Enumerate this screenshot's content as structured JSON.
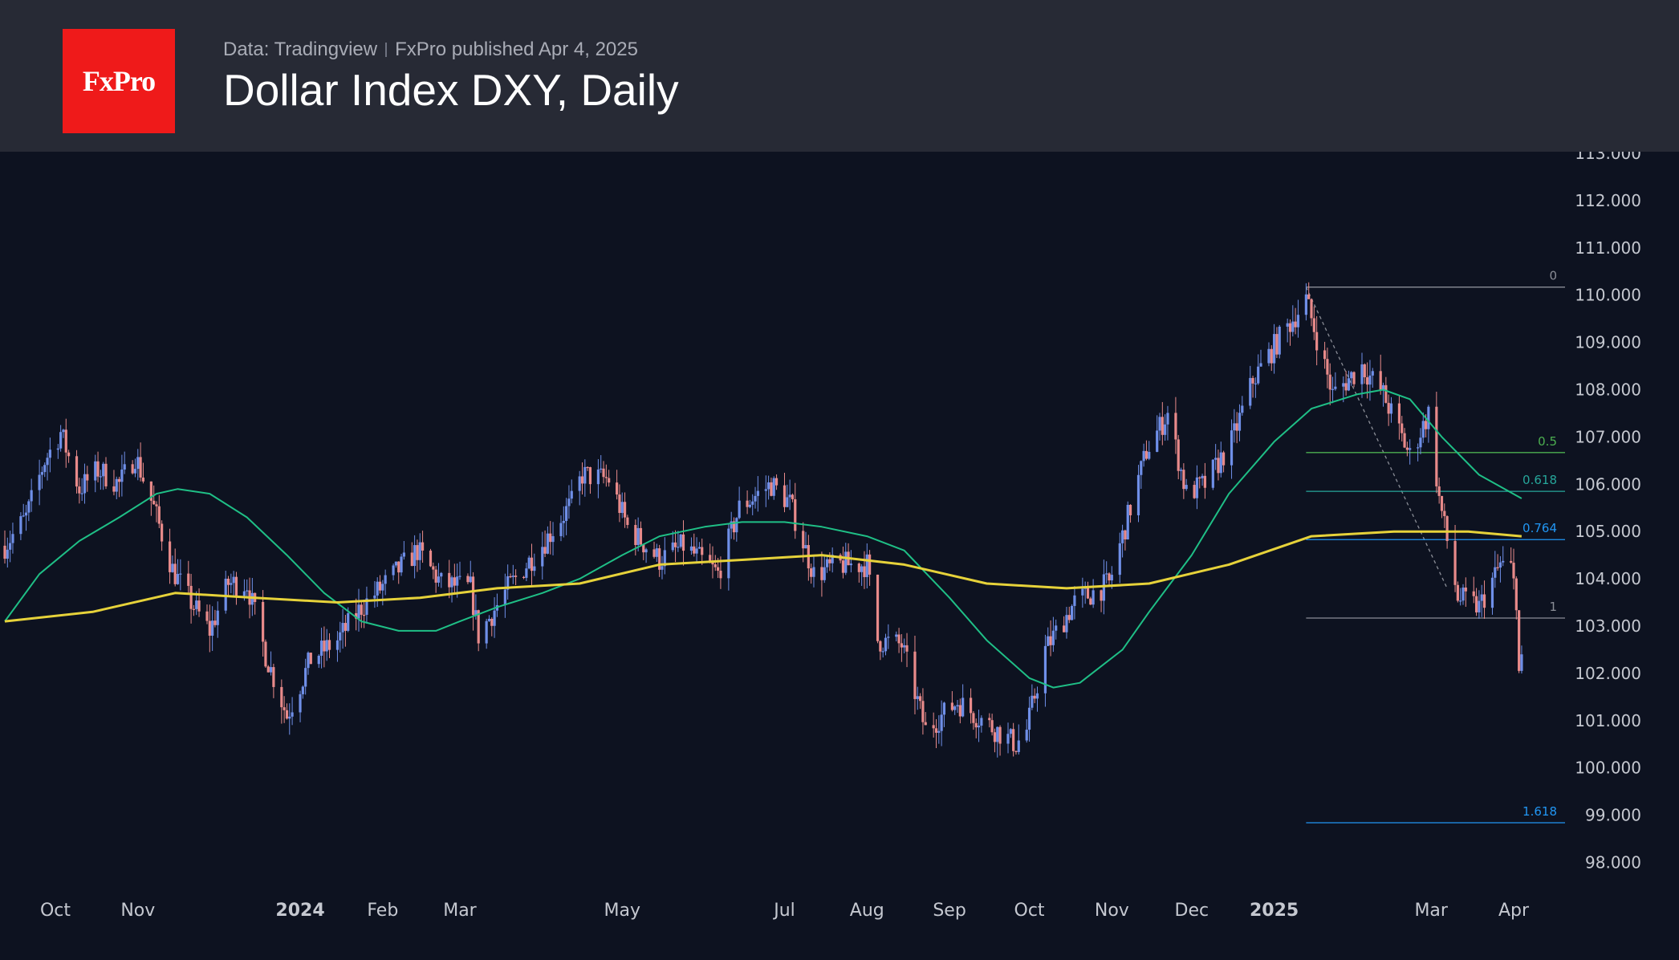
{
  "header": {
    "logo_text": "FxPro",
    "source": "Data: Tradingview",
    "published": "FxPro published Apr 4, 2025",
    "title": "Dollar Index DXY, Daily"
  },
  "colors": {
    "background": "#0d1220",
    "header_bg": "#272a35",
    "logo_bg": "#ef1a1a",
    "up_candle": "#6f8fe8",
    "down_candle": "#e88a8a",
    "ma_fast": "#1fbf86",
    "ma_slow": "#e6d23a",
    "fib_gray": "#8a8d96",
    "fib_green": "#4caf50",
    "fib_teal": "#26a69a",
    "fib_blue": "#2196f3"
  },
  "chart_data": {
    "type": "line",
    "instrument": "Dollar Index DXY",
    "timeframe": "Daily",
    "ylim": [
      98,
      113
    ],
    "y_ticks": [
      "113.000",
      "112.000",
      "111.000",
      "110.000",
      "109.000",
      "108.000",
      "107.000",
      "106.000",
      "105.000",
      "104.000",
      "103.000",
      "102.000",
      "101.000",
      "100.000",
      "99.000",
      "98.000"
    ],
    "x_ticks": [
      {
        "label": "Oct",
        "date": "2023-10-01",
        "bold": false
      },
      {
        "label": "Nov",
        "date": "2023-11-01",
        "bold": false
      },
      {
        "label": "2024",
        "date": "2024-01-01",
        "bold": true
      },
      {
        "label": "Feb",
        "date": "2024-02-01",
        "bold": false
      },
      {
        "label": "Mar",
        "date": "2024-03-01",
        "bold": false
      },
      {
        "label": "May",
        "date": "2024-05-01",
        "bold": false
      },
      {
        "label": "Jul",
        "date": "2024-07-01",
        "bold": false
      },
      {
        "label": "Aug",
        "date": "2024-08-01",
        "bold": false
      },
      {
        "label": "Sep",
        "date": "2024-09-01",
        "bold": false
      },
      {
        "label": "Oct",
        "date": "2024-10-01",
        "bold": false
      },
      {
        "label": "Nov",
        "date": "2024-11-01",
        "bold": false
      },
      {
        "label": "Dec",
        "date": "2024-12-01",
        "bold": false
      },
      {
        "label": "2025",
        "date": "2025-01-01",
        "bold": true
      },
      {
        "label": "Mar",
        "date": "2025-03-01",
        "bold": false
      },
      {
        "label": "Apr",
        "date": "2025-04-01",
        "bold": false
      }
    ],
    "price_path": [
      [
        "2023-09-12",
        104.7
      ],
      [
        "2023-09-20",
        105.3
      ],
      [
        "2023-09-27",
        106.5
      ],
      [
        "2023-10-03",
        107.1
      ],
      [
        "2023-10-10",
        105.9
      ],
      [
        "2023-10-17",
        106.3
      ],
      [
        "2023-10-25",
        106.0
      ],
      [
        "2023-10-31",
        106.6
      ],
      [
        "2023-11-07",
        105.5
      ],
      [
        "2023-11-14",
        104.2
      ],
      [
        "2023-11-21",
        103.5
      ],
      [
        "2023-11-28",
        102.9
      ],
      [
        "2023-12-05",
        103.9
      ],
      [
        "2023-12-12",
        103.9
      ],
      [
        "2023-12-19",
        102.4
      ],
      [
        "2023-12-27",
        101.1
      ],
      [
        "2024-01-05",
        102.3
      ],
      [
        "2024-01-15",
        102.7
      ],
      [
        "2024-01-24",
        103.4
      ],
      [
        "2024-02-02",
        103.9
      ],
      [
        "2024-02-14",
        104.6
      ],
      [
        "2024-02-23",
        103.9
      ],
      [
        "2024-03-05",
        103.8
      ],
      [
        "2024-03-08",
        102.8
      ],
      [
        "2024-03-19",
        103.8
      ],
      [
        "2024-04-02",
        104.8
      ],
      [
        "2024-04-12",
        105.6
      ],
      [
        "2024-04-16",
        106.2
      ],
      [
        "2024-04-26",
        106.1
      ],
      [
        "2024-05-03",
        105.1
      ],
      [
        "2024-05-15",
        104.4
      ],
      [
        "2024-05-24",
        104.7
      ],
      [
        "2024-06-06",
        104.1
      ],
      [
        "2024-06-14",
        105.5
      ],
      [
        "2024-06-26",
        106.0
      ],
      [
        "2024-07-03",
        105.6
      ],
      [
        "2024-07-12",
        104.1
      ],
      [
        "2024-07-22",
        104.3
      ],
      [
        "2024-08-01",
        104.3
      ],
      [
        "2024-08-05",
        102.7
      ],
      [
        "2024-08-14",
        102.6
      ],
      [
        "2024-08-23",
        100.8
      ],
      [
        "2024-09-04",
        101.4
      ],
      [
        "2024-09-16",
        100.9
      ],
      [
        "2024-09-26",
        100.5
      ],
      [
        "2024-09-30",
        100.8
      ],
      [
        "2024-10-07",
        102.5
      ],
      [
        "2024-10-18",
        103.5
      ],
      [
        "2024-10-31",
        103.9
      ],
      [
        "2024-11-06",
        105.1
      ],
      [
        "2024-11-14",
        106.7
      ],
      [
        "2024-11-22",
        107.5
      ],
      [
        "2024-11-29",
        105.8
      ],
      [
        "2024-12-06",
        106.0
      ],
      [
        "2024-12-16",
        106.9
      ],
      [
        "2024-12-24",
        108.2
      ],
      [
        "2025-01-02",
        109.0
      ],
      [
        "2025-01-13",
        109.9
      ],
      [
        "2025-01-23",
        107.9
      ],
      [
        "2025-02-03",
        108.5
      ],
      [
        "2025-02-11",
        107.9
      ],
      [
        "2025-02-21",
        106.6
      ],
      [
        "2025-02-28",
        107.5
      ],
      [
        "2025-03-04",
        105.7
      ],
      [
        "2025-03-11",
        103.6
      ],
      [
        "2025-03-19",
        103.4
      ],
      [
        "2025-03-27",
        104.3
      ],
      [
        "2025-03-31",
        104.2
      ],
      [
        "2025-04-02",
        103.6
      ],
      [
        "2025-04-03",
        102.0
      ],
      [
        "2025-04-04",
        102.2
      ]
    ],
    "series": [
      {
        "name": "",
        "points": [
          [
            "2023-09-12",
            103.1
          ],
          [
            "2023-09-25",
            104.1
          ],
          [
            "2023-10-10",
            104.8
          ],
          [
            "2023-10-25",
            105.3
          ],
          [
            "2023-11-08",
            105.8
          ],
          [
            "2023-11-16",
            105.9
          ],
          [
            "2023-11-28",
            105.8
          ],
          [
            "2023-12-12",
            105.3
          ],
          [
            "2023-12-27",
            104.5
          ],
          [
            "2024-01-10",
            103.7
          ],
          [
            "2024-01-24",
            103.1
          ],
          [
            "2024-02-07",
            102.9
          ],
          [
            "2024-02-21",
            102.9
          ],
          [
            "2024-03-01",
            103.1
          ],
          [
            "2024-03-15",
            103.4
          ],
          [
            "2024-04-01",
            103.7
          ],
          [
            "2024-04-15",
            104.0
          ],
          [
            "2024-05-01",
            104.5
          ],
          [
            "2024-05-15",
            104.9
          ],
          [
            "2024-06-01",
            105.1
          ],
          [
            "2024-06-15",
            105.2
          ],
          [
            "2024-07-01",
            105.2
          ],
          [
            "2024-07-15",
            105.1
          ],
          [
            "2024-08-01",
            104.9
          ],
          [
            "2024-08-15",
            104.6
          ],
          [
            "2024-09-01",
            103.6
          ],
          [
            "2024-09-15",
            102.7
          ],
          [
            "2024-10-01",
            101.9
          ],
          [
            "2024-10-10",
            101.7
          ],
          [
            "2024-10-20",
            101.8
          ],
          [
            "2024-11-05",
            102.5
          ],
          [
            "2024-11-15",
            103.3
          ],
          [
            "2024-12-01",
            104.5
          ],
          [
            "2024-12-15",
            105.8
          ],
          [
            "2025-01-01",
            106.9
          ],
          [
            "2025-01-15",
            107.6
          ],
          [
            "2025-02-01",
            107.9
          ],
          [
            "2025-02-11",
            108.0
          ],
          [
            "2025-02-21",
            107.8
          ],
          [
            "2025-03-05",
            107.0
          ],
          [
            "2025-03-19",
            106.2
          ],
          [
            "2025-04-04",
            105.7
          ]
        ]
      },
      {
        "name": "",
        "points": [
          [
            "2023-09-12",
            103.1
          ],
          [
            "2023-10-15",
            103.3
          ],
          [
            "2023-11-15",
            103.7
          ],
          [
            "2023-12-15",
            103.6
          ],
          [
            "2024-01-15",
            103.5
          ],
          [
            "2024-02-15",
            103.6
          ],
          [
            "2024-03-15",
            103.8
          ],
          [
            "2024-04-15",
            103.9
          ],
          [
            "2024-05-15",
            104.3
          ],
          [
            "2024-06-15",
            104.4
          ],
          [
            "2024-07-15",
            104.5
          ],
          [
            "2024-08-15",
            104.3
          ],
          [
            "2024-09-15",
            103.9
          ],
          [
            "2024-10-15",
            103.8
          ],
          [
            "2024-11-15",
            103.9
          ],
          [
            "2024-12-15",
            104.3
          ],
          [
            "2025-01-15",
            104.9
          ],
          [
            "2025-02-15",
            105.0
          ],
          [
            "2025-03-01",
            105.0
          ],
          [
            "2025-03-15",
            105.0
          ],
          [
            "2025-04-04",
            104.9
          ]
        ]
      }
    ],
    "fibonacci": {
      "start_date": "2025-01-13",
      "end_date": "2025-04-04",
      "levels": [
        {
          "label": "0",
          "value": 110.17,
          "color": "#8a8d96"
        },
        {
          "label": "0.5",
          "value": 106.67,
          "color": "#4caf50"
        },
        {
          "label": "0.618",
          "value": 105.85,
          "color": "#26a69a"
        },
        {
          "label": "0.764",
          "value": 104.83,
          "color": "#2196f3"
        },
        {
          "label": "1",
          "value": 103.17,
          "color": "#8a8d96"
        },
        {
          "label": "1.618",
          "value": 98.84,
          "color": "#2196f3"
        }
      ],
      "trend_line": [
        [
          "2025-01-13",
          110.17
        ],
        [
          "2025-03-07",
          103.8
        ]
      ]
    },
    "grid": false,
    "legend": "none"
  }
}
